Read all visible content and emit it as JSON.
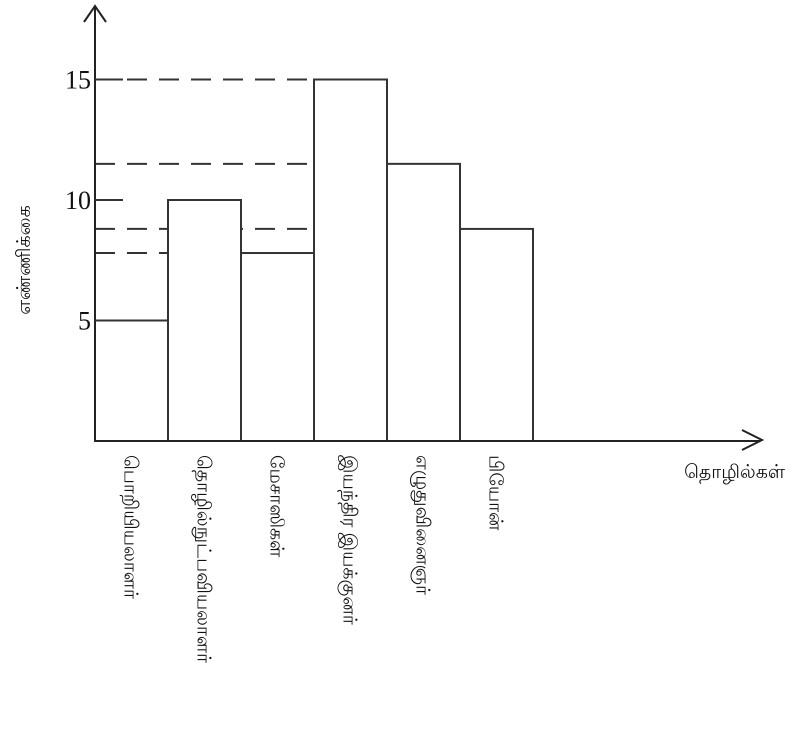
{
  "chart_data": {
    "type": "bar",
    "title": "",
    "xlabel": "தொழில்கள்",
    "ylabel": "எண்ணிக்கை",
    "categories": [
      "பொறியியலாளர்",
      "தொழில்நுட்பவியலாளர்",
      "மேசாஸிகள்",
      "இயந்திர இயக்குனர்",
      "எழுதுவினைஞர்",
      "பியோன்"
    ],
    "values": [
      5,
      10,
      7.8,
      15,
      11.5,
      8.8
    ],
    "yticks": [
      5,
      10,
      15
    ],
    "ylim": [
      0,
      18
    ],
    "grid": false,
    "legend": "none"
  }
}
